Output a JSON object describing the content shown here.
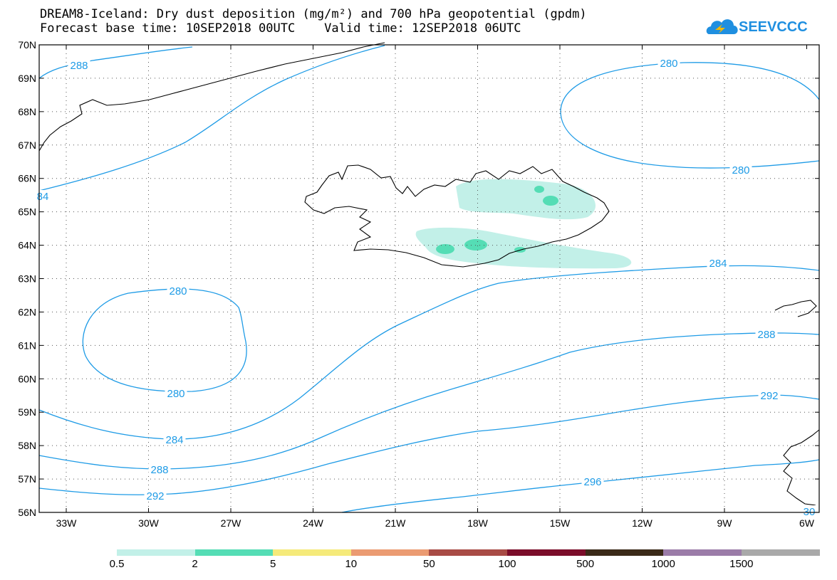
{
  "title_line1": "DREAM8-Iceland: Dry dust deposition (mg/m²) and 700 hPa geopotential (gpdm)",
  "title_line2": "Forecast base time: 10SEP2018 00UTC    Valid time: 12SEP2018 06UTC",
  "logo_text": "SEEVCCC",
  "lat_labels": [
    "70N",
    "69N",
    "68N",
    "67N",
    "66N",
    "65N",
    "64N",
    "63N",
    "62N",
    "61N",
    "60N",
    "59N",
    "58N",
    "57N",
    "56N"
  ],
  "lon_labels": [
    "33W",
    "30W",
    "27W",
    "24W",
    "21W",
    "18W",
    "15W",
    "12W",
    "9W",
    "6W"
  ],
  "contour_labels": [
    {
      "text": "288"
    },
    {
      "text": "280"
    },
    {
      "text": "280"
    },
    {
      "text": "84"
    },
    {
      "text": "284"
    },
    {
      "text": "280"
    },
    {
      "text": "280"
    },
    {
      "text": "288"
    },
    {
      "text": "292"
    },
    {
      "text": "284"
    },
    {
      "text": "288"
    },
    {
      "text": "292"
    },
    {
      "text": "296"
    },
    {
      "text": "30"
    }
  ],
  "colorbar": {
    "colors": [
      "#c2f0e8",
      "#55ddb5",
      "#f5ea7a",
      "#eb9b72",
      "#a84b45",
      "#7b0d2a",
      "#3a2a18",
      "#9b7ca8",
      "#a9a9a9"
    ],
    "labels": [
      "0.5",
      "2",
      "5",
      "10",
      "50",
      "100",
      "500",
      "1000",
      "1500"
    ]
  },
  "contour_color": "#1e9be6"
}
